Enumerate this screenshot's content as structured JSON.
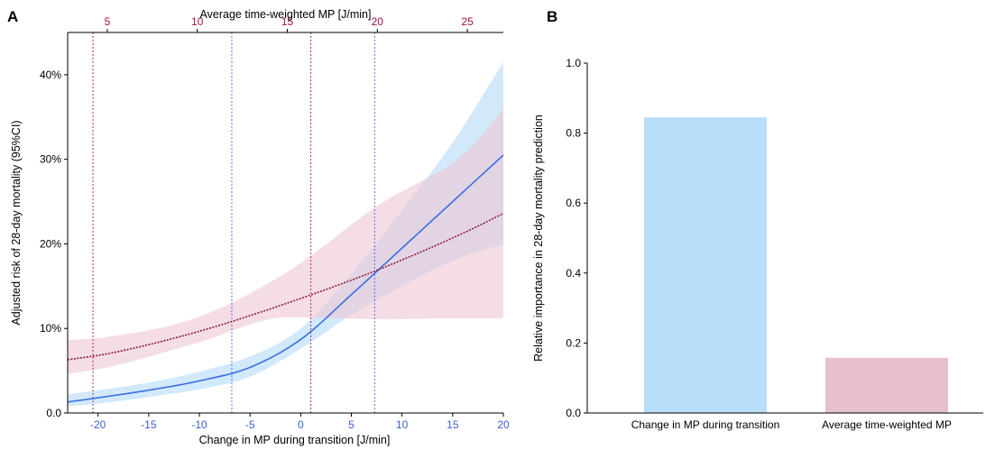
{
  "panels": {
    "a": {
      "letter": "A"
    },
    "b": {
      "letter": "B"
    }
  },
  "colors": {
    "blue_line": "#3a6fe0",
    "blue_band": "#bfe0fb",
    "red_line": "#8b1a3e",
    "red_band": "#eec7d3",
    "blue_tick": "#3a5fd0",
    "red_tick": "#a0104a",
    "bar_blue": "#b8def9",
    "bar_pink": "#e6bfcf"
  },
  "chart_data": [
    {
      "type": "line",
      "panel": "A",
      "xlabel": "Change in MP during transition [J/min]",
      "x2label": "Average time-weighted MP [J/min]",
      "ylabel": "Adjusted risk of 28-day mortality (95%CI)",
      "xlim": [
        -23,
        20
      ],
      "x2lim": [
        2.8,
        27
      ],
      "ylim": [
        0,
        45
      ],
      "xticks": [
        -20,
        -15,
        -10,
        -5,
        0,
        5,
        10,
        15,
        20
      ],
      "x2ticks": [
        5,
        10,
        15,
        20,
        25
      ],
      "yticks": [
        0,
        10,
        20,
        30,
        40
      ],
      "ytick_labels": [
        "0.0",
        "10%",
        "20%",
        "30%",
        "40%"
      ],
      "series": [
        {
          "axis": "bottom",
          "x": [
            -23,
            -20,
            -15,
            -10,
            -5,
            0,
            5,
            10,
            15,
            20
          ],
          "y": [
            1.3,
            1.8,
            2.7,
            3.8,
            5.4,
            8.7,
            14.0,
            19.5,
            25.0,
            30.5
          ],
          "lower": [
            0.8,
            1.1,
            1.9,
            2.8,
            4.3,
            7.6,
            11.6,
            15.0,
            18.0,
            20.0
          ],
          "upper": [
            2.2,
            2.7,
            3.6,
            4.9,
            6.7,
            10.0,
            16.5,
            24.0,
            32.0,
            41.5
          ]
        },
        {
          "axis": "top",
          "x": [
            2.8,
            5,
            10,
            15,
            20,
            25,
            27
          ],
          "y": [
            6.3,
            7.0,
            9.6,
            13.0,
            16.9,
            21.5,
            23.6
          ],
          "lower": [
            4.6,
            5.4,
            8.3,
            11.3,
            11.1,
            11.2,
            11.2
          ],
          "upper": [
            8.6,
            9.0,
            11.3,
            16.7,
            24.5,
            31.0,
            36.0
          ]
        }
      ],
      "ref_lines": [
        {
          "axis": "bottom",
          "x": -20.5
        },
        {
          "axis": "bottom",
          "x": 1
        },
        {
          "axis": "bottom",
          "x": -6.8
        },
        {
          "axis": "bottom",
          "x": 7.3
        }
      ]
    },
    {
      "type": "bar",
      "panel": "B",
      "ylabel": "Relative importance in 28-day mortality prediction",
      "ylim": [
        0,
        1.0
      ],
      "yticks": [
        0.0,
        0.2,
        0.4,
        0.6,
        0.8,
        1.0
      ],
      "ytick_labels": [
        "0.0",
        "0.2",
        "0.4",
        "0.6",
        "0.8",
        "1.0"
      ],
      "categories": [
        "Change in MP during transition",
        "Average time-weighted MP"
      ],
      "values": [
        0.845,
        0.158
      ]
    }
  ]
}
